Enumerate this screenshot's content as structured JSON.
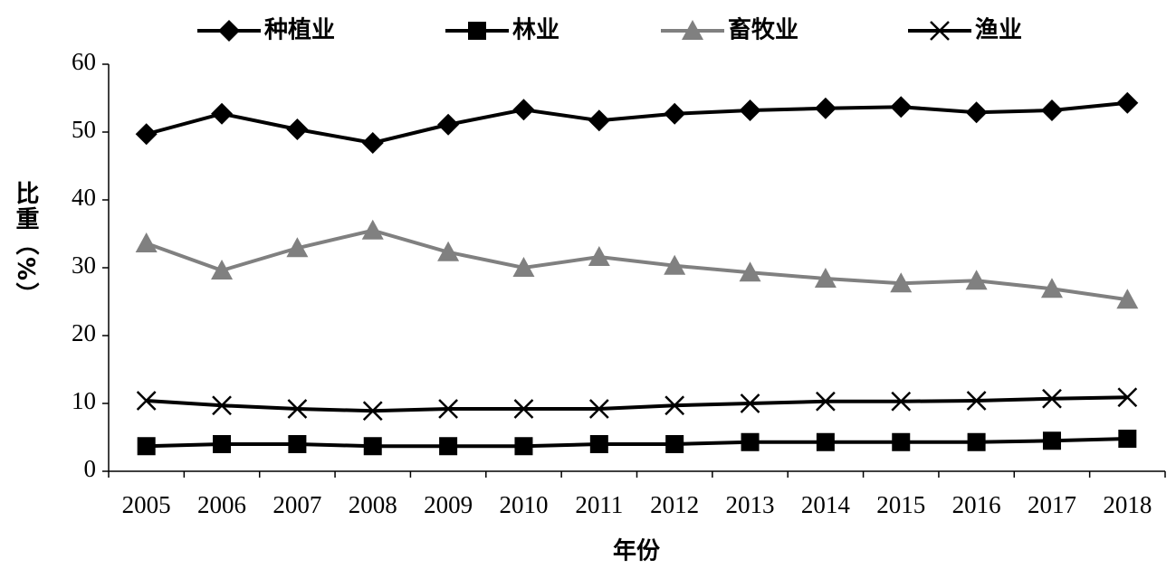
{
  "chart_data": {
    "type": "line",
    "x_label": "年份",
    "y_label": "比重（%）",
    "categories": [
      "2005",
      "2006",
      "2007",
      "2008",
      "2009",
      "2010",
      "2011",
      "2012",
      "2013",
      "2014",
      "2015",
      "2016",
      "2017",
      "2018"
    ],
    "series": [
      {
        "name": "种植业",
        "color": "#000000",
        "marker": "diamond",
        "values": [
          49.7,
          52.7,
          50.4,
          48.4,
          51.1,
          53.3,
          51.7,
          52.7,
          53.2,
          53.5,
          53.7,
          52.9,
          53.2,
          54.3
        ]
      },
      {
        "name": "林业",
        "color": "#000000",
        "marker": "square",
        "values": [
          3.7,
          4.0,
          4.0,
          3.7,
          3.7,
          3.7,
          4.0,
          4.0,
          4.3,
          4.3,
          4.3,
          4.3,
          4.5,
          4.8
        ]
      },
      {
        "name": "畜牧业",
        "color": "#808080",
        "marker": "triangle",
        "values": [
          33.6,
          29.6,
          32.9,
          35.5,
          32.3,
          30.0,
          31.6,
          30.3,
          29.3,
          28.4,
          27.7,
          28.1,
          26.9,
          25.3
        ]
      },
      {
        "name": "渔业",
        "color": "#000000",
        "marker": "x",
        "values": [
          10.4,
          9.7,
          9.2,
          8.9,
          9.2,
          9.2,
          9.2,
          9.7,
          10.0,
          10.3,
          10.3,
          10.4,
          10.7,
          10.9
        ]
      }
    ],
    "ylim": [
      0,
      60
    ],
    "yticks": [
      0,
      10,
      20,
      30,
      40,
      50,
      60
    ],
    "legend": "top"
  }
}
